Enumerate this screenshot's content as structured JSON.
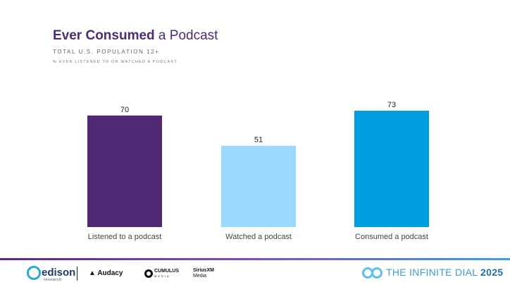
{
  "header": {
    "title_bold": "Ever Consumed",
    "title_rest": " a Podcast",
    "subtitle": "TOTAL U.S. POPULATION 12+",
    "note": "% EVER LISTENED TO OR WATCHED A PODCAST"
  },
  "chart_data": {
    "type": "bar",
    "categories": [
      "Listened to a podcast",
      "Watched a podcast",
      "Consumed a podcast"
    ],
    "values": [
      70,
      51,
      73
    ],
    "colors": [
      "#512873",
      "#99d9fc",
      "#009fe3"
    ],
    "title": "Ever Consumed a Podcast",
    "xlabel": "",
    "ylabel": "",
    "ylim": [
      0,
      73
    ],
    "grid": false,
    "legend": "none"
  },
  "footer": {
    "edison": "edison",
    "edison_sub": "research",
    "audacy": "Audacy",
    "cumulus": "CUMULUS",
    "cumulus_sub": "MEDIA",
    "sirius": "SiriusXM",
    "sirius_sub": "Media",
    "dial_text": "THE INFINITE DIAL",
    "dial_year": "2025"
  },
  "icons": [
    "edison-logo-icon",
    "audacy-logo-icon",
    "cumulus-logo-icon",
    "infinite-dial-logo-icon"
  ]
}
